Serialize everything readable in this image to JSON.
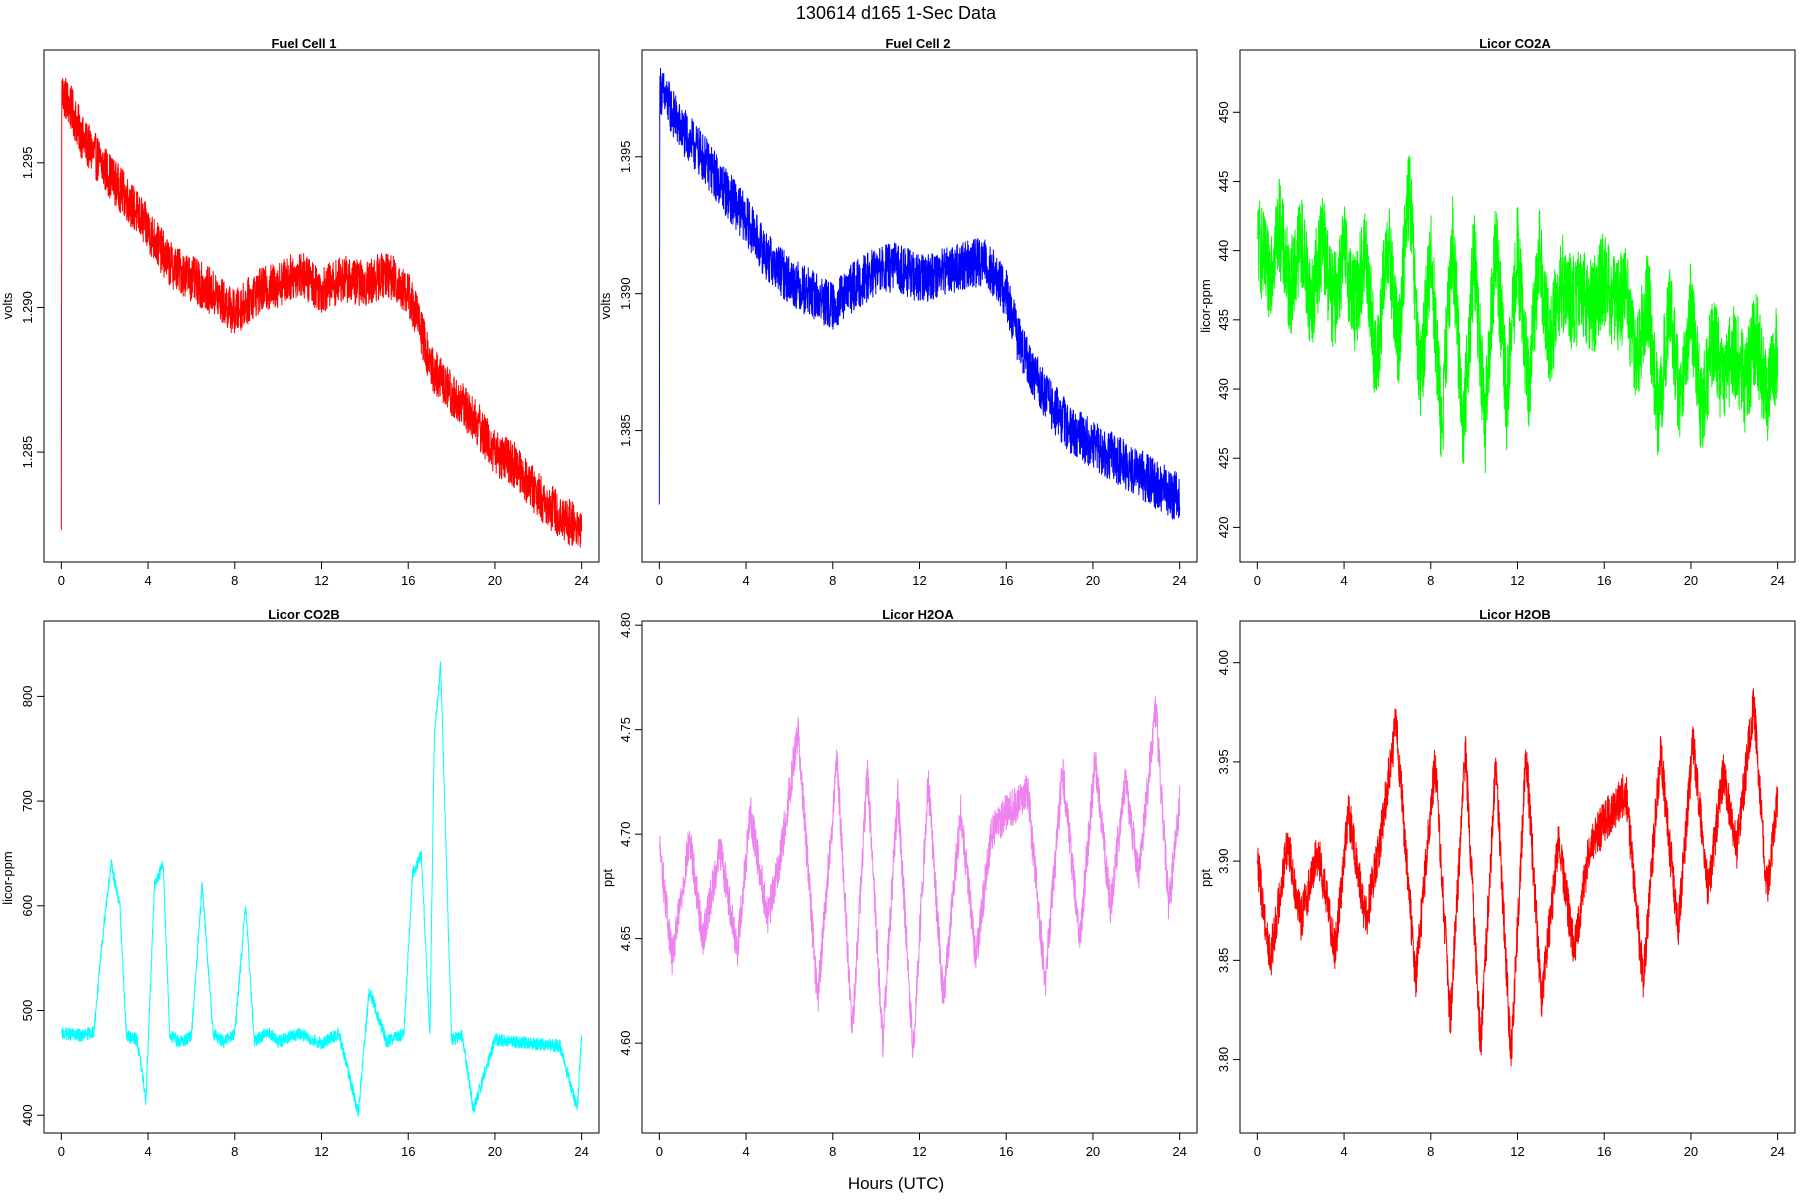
{
  "figure": {
    "title": "130614   d165   1-Sec Data",
    "xlabel": "Hours (UTC)"
  },
  "chart_data": [
    {
      "type": "line",
      "title": "Fuel Cell 1",
      "ylabel": "volts",
      "color": "#ff0000",
      "xlim": [
        -0.8,
        24.8
      ],
      "ylim": [
        1.2812,
        1.2989
      ],
      "xticks": [
        0,
        4,
        8,
        12,
        16,
        20,
        24
      ],
      "yticks": [
        1.285,
        1.29,
        1.295
      ],
      "ytick_labels": [
        "1.285",
        "1.290",
        "1.295"
      ],
      "x": [
        0,
        0.02,
        0.5,
        1,
        2,
        3,
        4,
        5,
        6,
        7,
        8,
        9,
        10,
        11,
        12,
        13,
        14,
        15,
        16,
        16.5,
        17,
        18,
        19,
        20,
        21,
        22,
        23,
        24
      ],
      "y": [
        1.2823,
        1.2975,
        1.2968,
        1.2958,
        1.2948,
        1.2938,
        1.2927,
        1.2915,
        1.291,
        1.2905,
        1.2898,
        1.2905,
        1.2908,
        1.2912,
        1.2906,
        1.291,
        1.2908,
        1.2912,
        1.2905,
        1.2895,
        1.288,
        1.287,
        1.2862,
        1.285,
        1.2845,
        1.2835,
        1.2828,
        1.2823
      ],
      "noise": 0.0008
    },
    {
      "type": "line",
      "title": "Fuel Cell 2",
      "ylabel": "volts",
      "color": "#0000ff",
      "xlim": [
        -0.8,
        24.8
      ],
      "ylim": [
        1.3802,
        1.3989
      ],
      "xticks": [
        0,
        4,
        8,
        12,
        16,
        20,
        24
      ],
      "yticks": [
        1.385,
        1.39,
        1.395
      ],
      "ytick_labels": [
        "1.385",
        "1.390",
        "1.395"
      ],
      "x": [
        0,
        0.02,
        0.5,
        1,
        2,
        3,
        4,
        5,
        6,
        7,
        8,
        9,
        10,
        11,
        12,
        13,
        14,
        15,
        16,
        16.5,
        17,
        18,
        19,
        20,
        21,
        22,
        23,
        24
      ],
      "y": [
        1.3823,
        1.3975,
        1.3968,
        1.396,
        1.395,
        1.3938,
        1.3927,
        1.3913,
        1.3905,
        1.39,
        1.3895,
        1.3903,
        1.3908,
        1.391,
        1.3905,
        1.3908,
        1.391,
        1.3912,
        1.39,
        1.3885,
        1.3875,
        1.386,
        1.385,
        1.3845,
        1.384,
        1.3835,
        1.383,
        1.3825
      ],
      "noise": 0.0009
    },
    {
      "type": "line",
      "title": "Licor CO2A",
      "ylabel": "licor-ppm",
      "color": "#00ff00",
      "xlim": [
        -0.8,
        24.8
      ],
      "ylim": [
        417.5,
        454.5
      ],
      "xticks": [
        0,
        4,
        8,
        12,
        16,
        20,
        24
      ],
      "yticks": [
        420,
        425,
        430,
        435,
        440,
        445,
        450
      ],
      "ytick_labels": [
        "420",
        "425",
        "430",
        "435",
        "440",
        "445",
        "450"
      ],
      "x": [
        0,
        0.5,
        1,
        1.5,
        2,
        2.5,
        3,
        3.5,
        4,
        4.5,
        5,
        5.5,
        6,
        6.5,
        7,
        7.5,
        8,
        8.5,
        9,
        9.5,
        10,
        10.5,
        11,
        11.5,
        12,
        12.5,
        13,
        13.5,
        14,
        14.5,
        15,
        15.5,
        16,
        16.5,
        17,
        17.5,
        18,
        18.5,
        19,
        19.5,
        20,
        20.5,
        21,
        21.5,
        22,
        22.5,
        23,
        23.5,
        24
      ],
      "y": [
        441,
        438,
        442,
        437,
        441,
        436,
        441,
        436,
        440,
        436,
        440,
        431,
        441,
        433,
        445,
        430,
        440,
        427,
        441,
        427,
        440,
        427,
        441,
        429,
        440,
        430,
        440,
        433,
        438,
        436,
        437,
        436,
        438,
        436,
        437,
        432,
        437,
        428,
        436,
        429,
        436,
        428,
        434,
        430,
        433,
        430,
        434,
        429,
        433
      ],
      "noise": 3.5
    },
    {
      "type": "line",
      "title": "Licor CO2B",
      "ylabel": "licor-ppm",
      "color": "#00ffff",
      "xlim": [
        -0.8,
        24.8
      ],
      "ylim": [
        383,
        872
      ],
      "xticks": [
        0,
        4,
        8,
        12,
        16,
        20,
        24
      ],
      "yticks": [
        400,
        500,
        600,
        700,
        800
      ],
      "ytick_labels": [
        "400",
        "500",
        "600",
        "700",
        "800"
      ],
      "x": [
        0,
        1,
        1.5,
        2,
        2.3,
        2.7,
        3,
        3.5,
        3.9,
        4.3,
        4.7,
        5,
        5.5,
        6,
        6.5,
        7,
        7.5,
        8,
        8.5,
        8.9,
        9.5,
        10,
        11,
        12,
        12.8,
        13.7,
        14.2,
        15,
        15.8,
        16.2,
        16.6,
        17,
        17.2,
        17.5,
        18,
        18.5,
        19,
        20,
        21,
        22,
        23,
        23.8,
        24
      ],
      "y": [
        478,
        476,
        480,
        590,
        640,
        600,
        476,
        472,
        415,
        620,
        640,
        476,
        470,
        475,
        620,
        478,
        470,
        478,
        600,
        470,
        480,
        470,
        478,
        468,
        478,
        402,
        520,
        470,
        478,
        630,
        650,
        476,
        760,
        830,
        472,
        476,
        405,
        472,
        470,
        468,
        466,
        405,
        475
      ],
      "noise": 6
    },
    {
      "type": "line",
      "title": "Licor H2OA",
      "ylabel": "ppt",
      "color": "#ee82ee",
      "xlim": [
        -0.8,
        24.8
      ],
      "ylim": [
        4.557,
        4.802
      ],
      "xticks": [
        0,
        4,
        8,
        12,
        16,
        20,
        24
      ],
      "yticks": [
        4.6,
        4.65,
        4.7,
        4.75,
        4.8
      ],
      "ytick_labels": [
        "4.60",
        "4.65",
        "4.70",
        "4.75",
        "4.80"
      ],
      "x": [
        0,
        0.6,
        1.4,
        2.0,
        2.8,
        3.6,
        4.2,
        5.0,
        5.6,
        6.4,
        7.3,
        8.2,
        8.9,
        9.6,
        10.3,
        11.0,
        11.7,
        12.4,
        13.1,
        13.9,
        14.6,
        15.3,
        16.0,
        17.0,
        17.8,
        18.6,
        19.4,
        20.1,
        20.8,
        21.5,
        22.1,
        22.9,
        23.5,
        24
      ],
      "y": [
        4.695,
        4.64,
        4.698,
        4.65,
        4.693,
        4.645,
        4.71,
        4.66,
        4.69,
        4.75,
        4.62,
        4.735,
        4.605,
        4.73,
        4.6,
        4.72,
        4.595,
        4.725,
        4.62,
        4.71,
        4.64,
        4.7,
        4.71,
        4.72,
        4.63,
        4.73,
        4.65,
        4.735,
        4.665,
        4.725,
        4.68,
        4.76,
        4.665,
        4.715
      ],
      "noise": 0.009
    },
    {
      "type": "line",
      "title": "Licor H2OB",
      "ylabel": "ppt",
      "color": "#ff0000",
      "xlim": [
        -0.8,
        24.8
      ],
      "ylim": [
        3.763,
        4.021
      ],
      "xticks": [
        0,
        4,
        8,
        12,
        16,
        20,
        24
      ],
      "yticks": [
        3.8,
        3.85,
        3.9,
        3.95,
        4.0
      ],
      "ytick_labels": [
        "3.80",
        "3.85",
        "3.90",
        "3.95",
        "4.00"
      ],
      "x": [
        0,
        0.6,
        1.4,
        2.0,
        2.8,
        3.6,
        4.2,
        5.0,
        5.6,
        6.4,
        7.3,
        8.2,
        8.9,
        9.6,
        10.3,
        11.0,
        11.7,
        12.4,
        13.1,
        13.9,
        14.6,
        15.3,
        16.0,
        17.0,
        17.8,
        18.6,
        19.4,
        20.1,
        20.8,
        21.5,
        22.1,
        22.9,
        23.5,
        24
      ],
      "y": [
        3.9,
        3.85,
        3.91,
        3.87,
        3.905,
        3.855,
        3.925,
        3.87,
        3.905,
        3.97,
        3.84,
        3.95,
        3.82,
        3.955,
        3.805,
        3.95,
        3.8,
        3.955,
        3.83,
        3.91,
        3.855,
        3.905,
        3.92,
        3.935,
        3.84,
        3.955,
        3.865,
        3.96,
        3.885,
        3.945,
        3.905,
        3.98,
        3.885,
        3.93
      ],
      "noise": 0.011
    }
  ]
}
